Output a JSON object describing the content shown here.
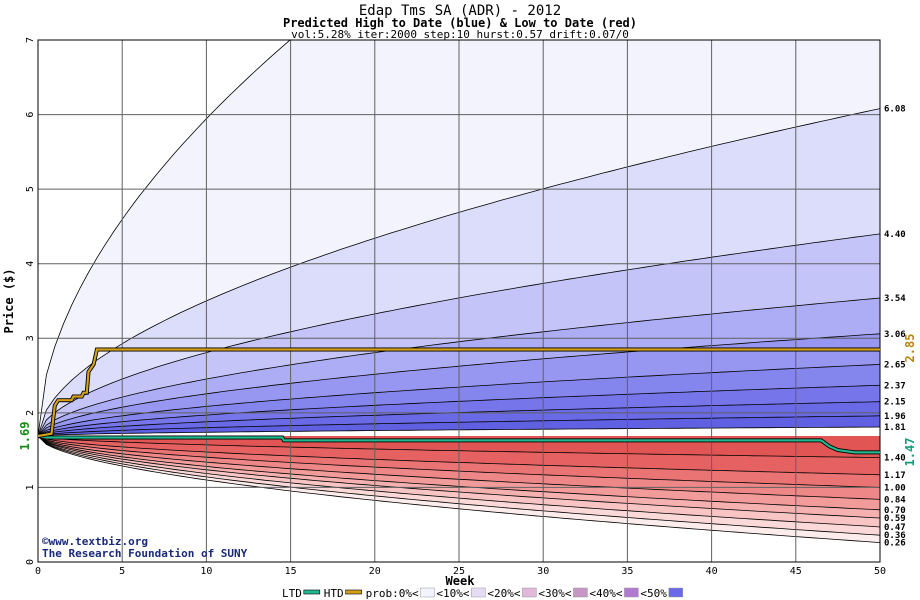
{
  "chart_data": {
    "type": "area",
    "title": "Edap Tms SA (ADR) - 2012",
    "subtitle": "Predicted High to Date (blue) &  Low to Date (red)",
    "params": "vol:5.28% iter:2000 step:10 hurst:0.57 drift:0.07/0",
    "xlabel": "Week",
    "ylabel": "Price ($)",
    "xlim": [
      0,
      50
    ],
    "ylim": [
      0,
      7
    ],
    "x_ticks": [
      "0",
      "5",
      "10",
      "15",
      "20",
      "25",
      "30",
      "35",
      "40",
      "45",
      "50"
    ],
    "y_ticks": [
      "0",
      "1",
      "2",
      "3",
      "4",
      "5",
      "6",
      "7"
    ],
    "start_price": 1.69,
    "start_label": "1.69",
    "high_bands": [
      {
        "end": 12.0,
        "label": ""
      },
      {
        "end": 6.08,
        "label": "6.08"
      },
      {
        "end": 4.4,
        "label": "4.40"
      },
      {
        "end": 3.54,
        "label": "3.54"
      },
      {
        "end": 3.06,
        "label": "3.06"
      },
      {
        "end": 2.65,
        "label": "2.65"
      },
      {
        "end": 2.37,
        "label": "2.37"
      },
      {
        "end": 2.15,
        "label": "2.15"
      },
      {
        "end": 1.96,
        "label": "1.96"
      },
      {
        "end": 1.81,
        "label": "1.81"
      }
    ],
    "low_bands": [
      {
        "end": 0.26,
        "label": "0.26"
      },
      {
        "end": 0.36,
        "label": "0.36"
      },
      {
        "end": 0.47,
        "label": "0.47"
      },
      {
        "end": 0.59,
        "label": "0.59"
      },
      {
        "end": 0.7,
        "label": "0.70"
      },
      {
        "end": 0.84,
        "label": "0.84"
      },
      {
        "end": 1.0,
        "label": "1.00"
      },
      {
        "end": 1.17,
        "label": "1.17"
      },
      {
        "end": 1.4,
        "label": "1.40"
      }
    ],
    "htd_line": {
      "points": [
        [
          0,
          1.69
        ],
        [
          0.8,
          1.72
        ],
        [
          1,
          2.1
        ],
        [
          1.2,
          2.17
        ],
        [
          2,
          2.17
        ],
        [
          2.1,
          2.22
        ],
        [
          2.6,
          2.22
        ],
        [
          2.7,
          2.27
        ],
        [
          2.9,
          2.27
        ],
        [
          3,
          2.55
        ],
        [
          3.3,
          2.65
        ],
        [
          3.5,
          2.85
        ],
        [
          50,
          2.85
        ]
      ],
      "end_label": "2.85",
      "color": "#d4a017"
    },
    "ltd_line": {
      "points": [
        [
          0,
          1.69
        ],
        [
          0.5,
          1.67
        ],
        [
          14.5,
          1.67
        ],
        [
          14.6,
          1.63
        ],
        [
          46.5,
          1.63
        ],
        [
          47,
          1.55
        ],
        [
          47.5,
          1.5
        ],
        [
          48.5,
          1.47
        ],
        [
          50,
          1.47
        ]
      ],
      "end_label": "1.47",
      "color": "#1fb890"
    },
    "band_colors": {
      "high": [
        "#f3f3fe",
        "#dcdcfb",
        "#c4c4f8",
        "#adadf5",
        "#9797f1",
        "#8585ee",
        "#7676ea",
        "#6a6ae6",
        "#6060e2"
      ],
      "low": [
        "#fdecec",
        "#fbd9d9",
        "#f8c4c4",
        "#f5b0b0",
        "#f29b9b",
        "#ee8787",
        "#ea7474",
        "#e66262",
        "#e25555"
      ]
    },
    "credit_lines": [
      "©www.textbiz.org",
      "The Research Foundation of SUNY"
    ],
    "legend": [
      {
        "label": "LTD",
        "color": "#1fb890",
        "kind": "line"
      },
      {
        "label": "HTD",
        "color": "#d4a017",
        "kind": "line"
      },
      {
        "label": "prob:0%<",
        "color": "#ffffff",
        "kind": "swatch"
      },
      {
        "label": "<10%<",
        "color": "#f3f3fe",
        "kind": "swatch"
      },
      {
        "label": "<20%<",
        "color": "#e4dcf4",
        "kind": "swatch"
      },
      {
        "label": "<30%<",
        "color": "#e2b8d8",
        "kind": "swatch"
      },
      {
        "label": "<40%<",
        "color": "#c896c4",
        "kind": "swatch"
      },
      {
        "label": "<50%",
        "color": "#b07ad0",
        "kind": "swatch"
      }
    ]
  }
}
